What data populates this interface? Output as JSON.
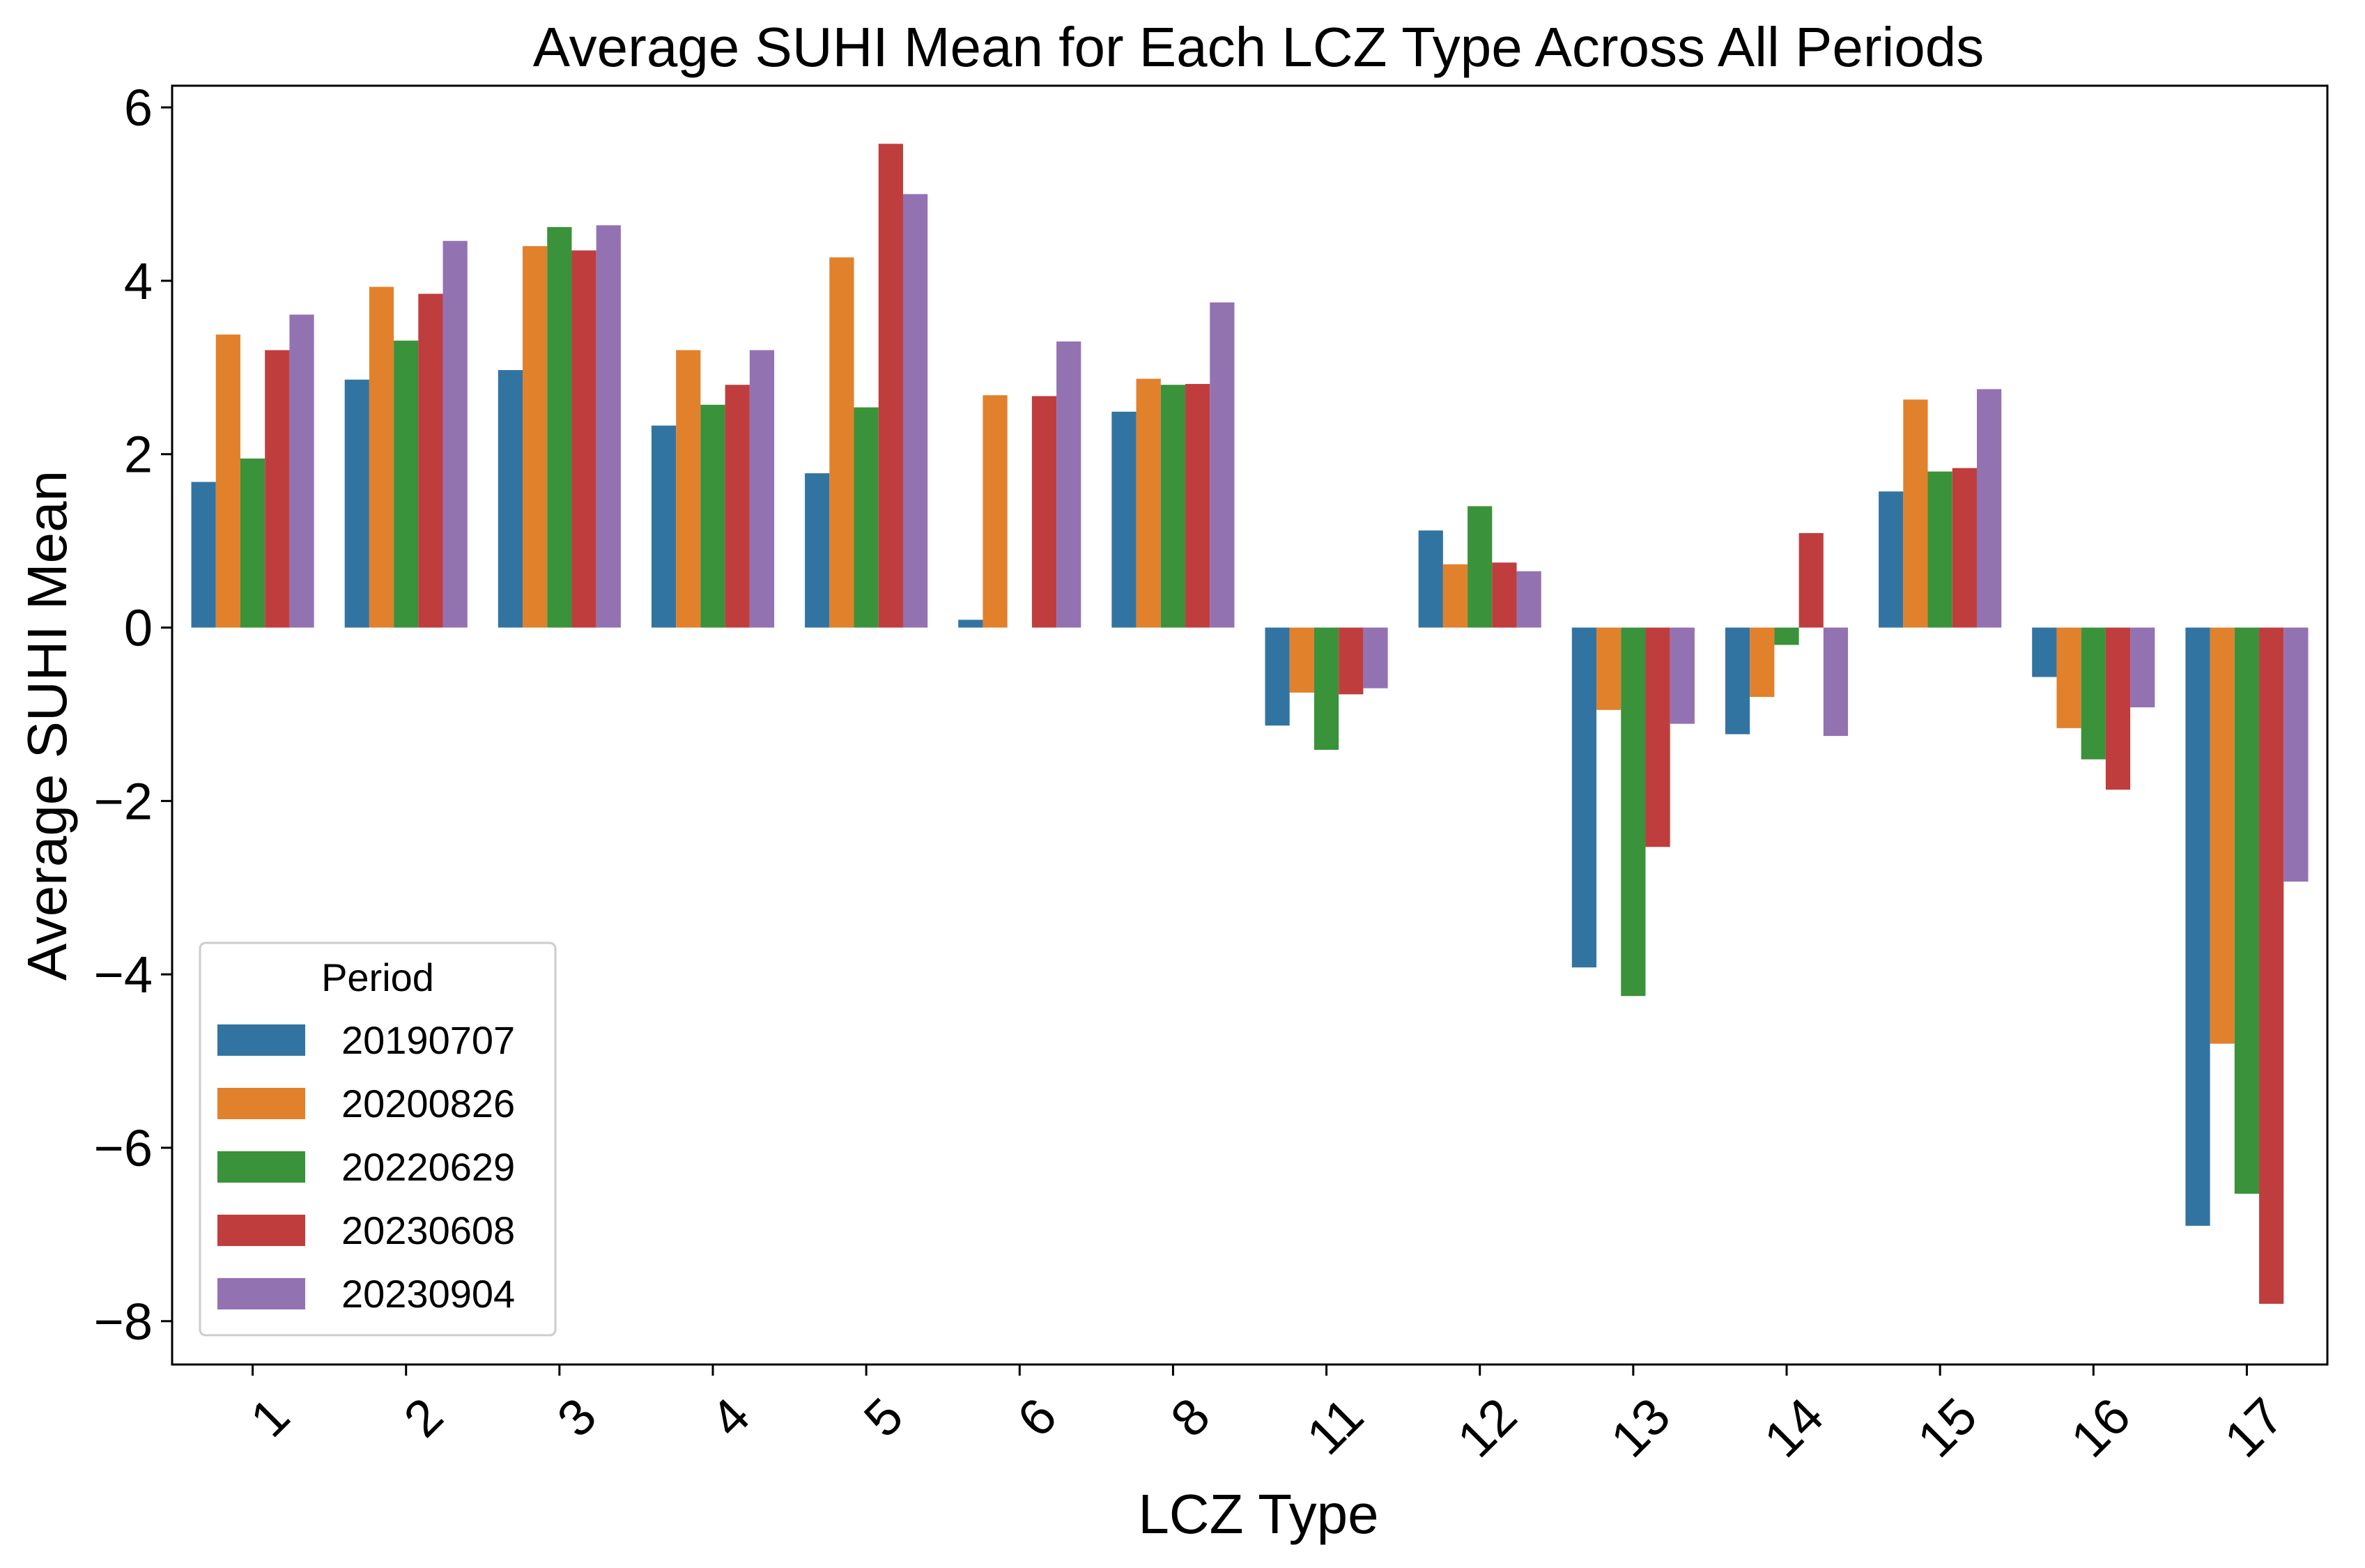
{
  "chart_data": {
    "type": "bar",
    "title": "Average SUHI Mean for Each LCZ Type Across All Periods",
    "xlabel": "LCZ Type",
    "ylabel": "Average SUHI Mean",
    "ylim": [
      -8.5,
      6.25
    ],
    "yticks": [
      6,
      4,
      2,
      0,
      -2,
      -4,
      -6,
      -8
    ],
    "ytick_labels": [
      "6",
      "4",
      "2",
      "0",
      "−2",
      "−4",
      "−6",
      "−8"
    ],
    "categories": [
      "1",
      "2",
      "3",
      "4",
      "5",
      "6",
      "8",
      "11",
      "12",
      "13",
      "14",
      "15",
      "16",
      "17"
    ],
    "legend": {
      "title": "Period",
      "position": "lower-left"
    },
    "series": [
      {
        "name": "20190707",
        "color": "#3274a1",
        "values": [
          1.68,
          2.86,
          2.97,
          2.33,
          1.78,
          0.09,
          2.49,
          -1.13,
          1.12,
          -3.92,
          -1.23,
          1.57,
          -0.57,
          -6.9
        ]
      },
      {
        "name": "20200826",
        "color": "#e1812c",
        "values": [
          3.38,
          3.93,
          4.4,
          3.2,
          4.27,
          2.68,
          2.87,
          -0.75,
          0.73,
          -0.95,
          -0.8,
          2.63,
          -1.16,
          -4.8
        ]
      },
      {
        "name": "20220629",
        "color": "#3a923a",
        "values": [
          1.95,
          3.31,
          4.62,
          2.57,
          2.54,
          0.0,
          2.8,
          -1.41,
          1.4,
          -4.25,
          -0.2,
          1.8,
          -1.52,
          -6.53
        ]
      },
      {
        "name": "20230608",
        "color": "#c03d3e",
        "values": [
          3.2,
          3.85,
          4.35,
          2.8,
          5.58,
          2.67,
          2.81,
          -0.77,
          0.75,
          -2.53,
          1.09,
          1.84,
          -1.87,
          -7.8
        ]
      },
      {
        "name": "20230904",
        "color": "#9372b2",
        "values": [
          3.61,
          4.46,
          4.64,
          3.2,
          5.0,
          3.3,
          3.75,
          -0.7,
          0.65,
          -1.11,
          -1.25,
          2.75,
          -0.92,
          -2.93
        ]
      }
    ]
  }
}
